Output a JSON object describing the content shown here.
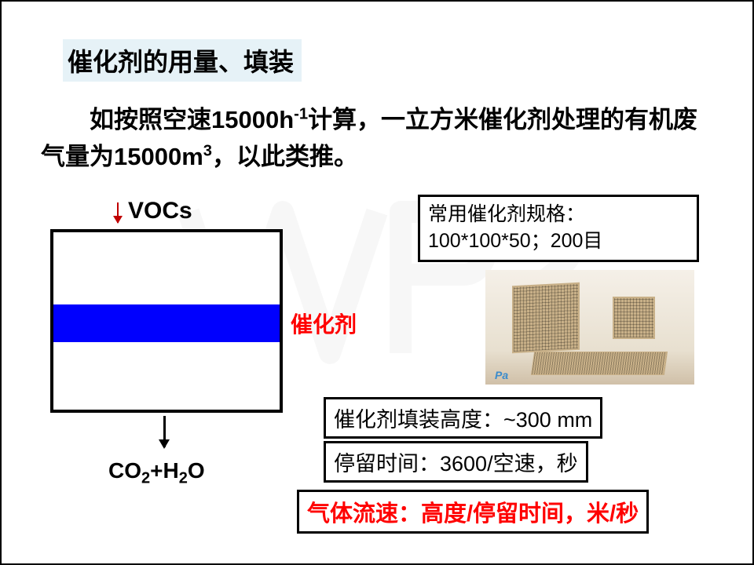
{
  "title": "催化剂的用量、填装",
  "intro_html": "如按照空速15000h<sup>-1</sup>计算，一立方米催化剂处理的有机废气量为15000m<sup>3</sup>，以此类推。",
  "diagram": {
    "input_label": "VOCs",
    "catalyst_label": "催化剂",
    "output_html": "CO<sub>2</sub>+H<sub>2</sub>O",
    "catalyst_color": "#0000fe",
    "label_color": "#ff0000",
    "arrow_in_color": "#c00000"
  },
  "spec_box": {
    "line1": "常用催化剂规格：",
    "line2": "100*100*50；200目"
  },
  "info": {
    "height": "催化剂填装高度：~300 mm",
    "residence": "停留时间：3600/空速，秒",
    "velocity": "气体流速：高度/停留时间，米/秒"
  },
  "watermark": "WPS",
  "photo_watermark": "Pa",
  "colors": {
    "title_bg": "#e6f2f7",
    "red": "#ff0000",
    "blue": "#0000fe"
  }
}
